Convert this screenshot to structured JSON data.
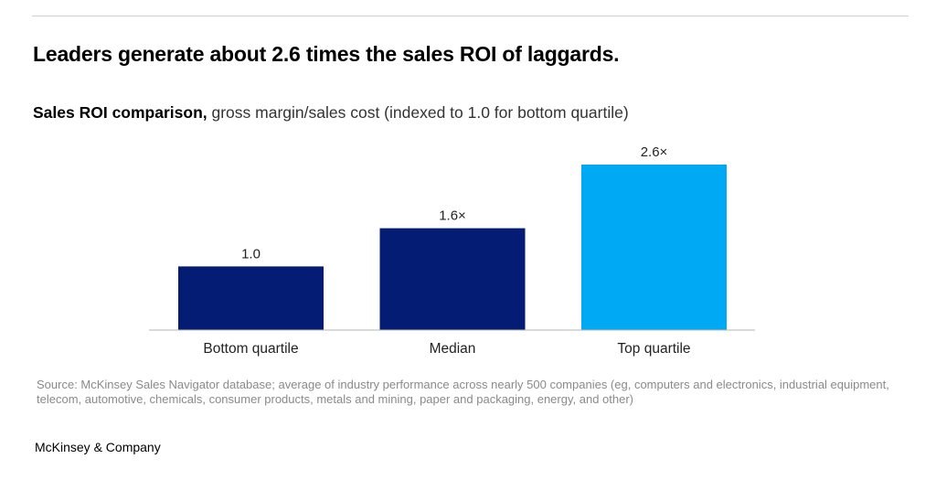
{
  "headline": "Leaders generate about 2.6 times the sales ROI of laggards.",
  "subtitle": {
    "bold": "Sales ROI comparison,",
    "rest": " gross margin/sales cost (indexed to 1.0 for bottom quartile)"
  },
  "chart_data": {
    "type": "bar",
    "title": "Sales ROI comparison",
    "subtitle": "gross margin/sales cost (indexed to 1.0 for bottom quartile)",
    "xlabel": "",
    "ylabel": "",
    "ylim": [
      0,
      2.6
    ],
    "grid": false,
    "legend": "none",
    "categories": [
      "Bottom quartile",
      "Median",
      "Top quartile"
    ],
    "values": [
      1.0,
      1.6,
      2.6
    ],
    "data_labels": [
      "1.0",
      "1.6×",
      "2.6×"
    ],
    "colors": [
      "#051C74",
      "#051C74",
      "#00A9F4"
    ],
    "baseline_color": "#b5b5b5"
  },
  "source": "Source: McKinsey Sales Navigator database; average of industry performance across nearly 500 companies (eg, computers and electronics, industrial equipment, telecom, automotive, chemicals, consumer products, metals and mining, paper and packaging, energy, and other)",
  "brand": "McKinsey & Company"
}
